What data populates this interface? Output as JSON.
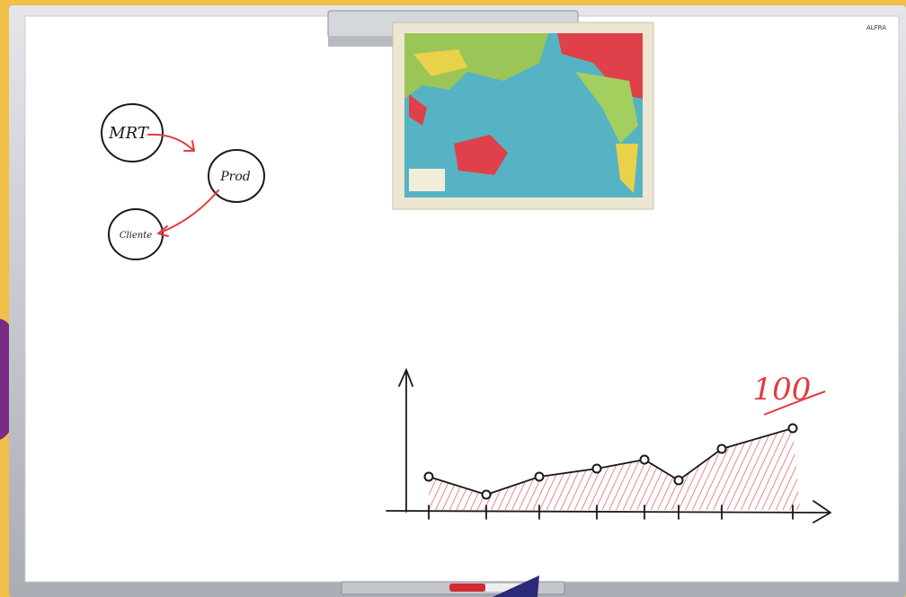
{
  "brand": "ALFRA",
  "diagram": {
    "nodes": [
      {
        "label": "MRT"
      },
      {
        "label": "Prod"
      },
      {
        "label": "Cliente"
      }
    ]
  },
  "sketch": {
    "label": "100"
  }
}
